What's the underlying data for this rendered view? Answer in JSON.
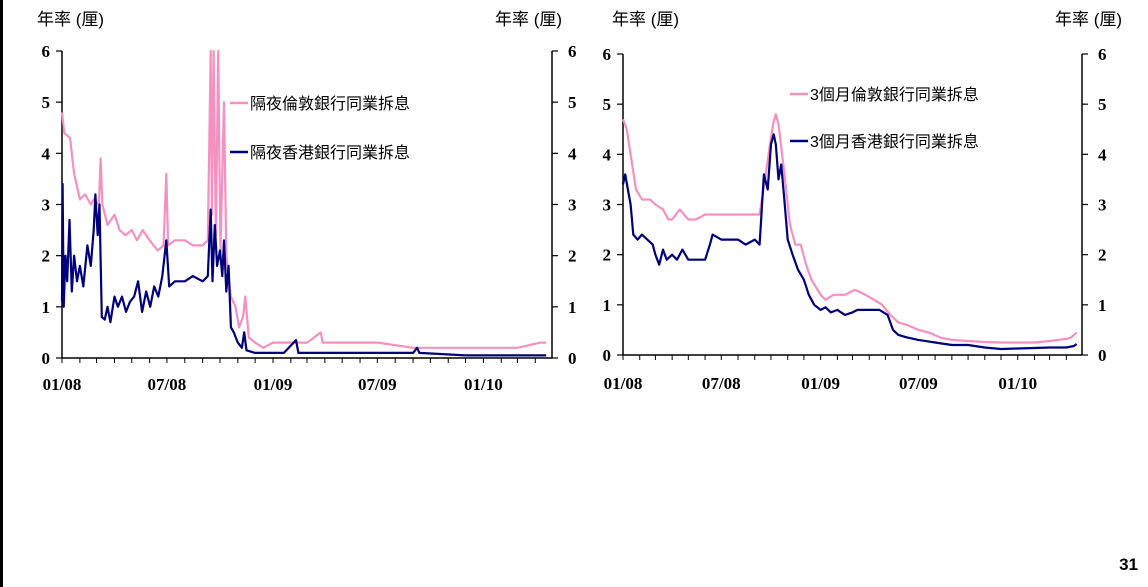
{
  "page_number": "31",
  "colors": {
    "pink": "#F590C0",
    "navy": "#00007A"
  },
  "chart_data": [
    {
      "type": "line",
      "left_unit": "年率 (厘)",
      "right_unit": "年率 (厘)",
      "x_tick_labels": [
        "01/08",
        "07/08",
        "01/09",
        "07/09",
        "01/10"
      ],
      "xlim": [
        "2008-01-01",
        "2010-04-30"
      ],
      "ylim": [
        0,
        6
      ],
      "y_ticks": [
        0,
        1,
        2,
        3,
        4,
        5,
        6
      ],
      "grid": false,
      "legend_position": "top-right",
      "series": [
        {
          "name": "隔夜倫敦銀行同業拆息",
          "color": "#F590C0",
          "points": [
            [
              "2008-01-01",
              4.8
            ],
            [
              "2008-01-05",
              4.4
            ],
            [
              "2008-01-15",
              4.3
            ],
            [
              "2008-01-22",
              3.6
            ],
            [
              "2008-02-01",
              3.1
            ],
            [
              "2008-02-10",
              3.2
            ],
            [
              "2008-02-20",
              3.0
            ],
            [
              "2008-02-25",
              3.1
            ],
            [
              "2008-03-05",
              3.0
            ],
            [
              "2008-03-08",
              3.9
            ],
            [
              "2008-03-11",
              3.0
            ],
            [
              "2008-03-20",
              2.6
            ],
            [
              "2008-04-01",
              2.8
            ],
            [
              "2008-04-10",
              2.5
            ],
            [
              "2008-04-20",
              2.4
            ],
            [
              "2008-05-01",
              2.5
            ],
            [
              "2008-05-10",
              2.3
            ],
            [
              "2008-05-20",
              2.5
            ],
            [
              "2008-06-01",
              2.3
            ],
            [
              "2008-06-15",
              2.1
            ],
            [
              "2008-06-25",
              2.2
            ],
            [
              "2008-06-30",
              3.6
            ],
            [
              "2008-07-03",
              2.2
            ],
            [
              "2008-07-15",
              2.3
            ],
            [
              "2008-08-01",
              2.3
            ],
            [
              "2008-08-15",
              2.2
            ],
            [
              "2008-09-01",
              2.2
            ],
            [
              "2008-09-10",
              2.3
            ],
            [
              "2008-09-15",
              6.0
            ],
            [
              "2008-09-17",
              2.8
            ],
            [
              "2008-09-20",
              6.0
            ],
            [
              "2008-09-24",
              2.4
            ],
            [
              "2008-09-28",
              6.0
            ],
            [
              "2008-10-02",
              2.1
            ],
            [
              "2008-10-08",
              5.0
            ],
            [
              "2008-10-12",
              2.0
            ],
            [
              "2008-10-20",
              1.2
            ],
            [
              "2008-10-28",
              1.0
            ],
            [
              "2008-11-03",
              0.6
            ],
            [
              "2008-11-10",
              0.8
            ],
            [
              "2008-11-14",
              1.2
            ],
            [
              "2008-11-20",
              0.4
            ],
            [
              "2008-12-01",
              0.3
            ],
            [
              "2008-12-15",
              0.2
            ],
            [
              "2009-01-01",
              0.3
            ],
            [
              "2009-02-01",
              0.3
            ],
            [
              "2009-03-01",
              0.3
            ],
            [
              "2009-03-25",
              0.5
            ],
            [
              "2009-03-28",
              0.3
            ],
            [
              "2009-05-01",
              0.3
            ],
            [
              "2009-07-01",
              0.3
            ],
            [
              "2009-09-01",
              0.2
            ],
            [
              "2009-12-01",
              0.2
            ],
            [
              "2010-03-01",
              0.2
            ],
            [
              "2010-04-10",
              0.3
            ],
            [
              "2010-04-20",
              0.3
            ]
          ]
        },
        {
          "name": "隔夜香港銀行同業拆息",
          "color": "#00007A",
          "points": [
            [
              "2008-01-01",
              1.1
            ],
            [
              "2008-01-02",
              3.4
            ],
            [
              "2008-01-04",
              1.0
            ],
            [
              "2008-01-07",
              2.0
            ],
            [
              "2008-01-10",
              1.5
            ],
            [
              "2008-01-14",
              2.7
            ],
            [
              "2008-01-18",
              1.3
            ],
            [
              "2008-01-22",
              2.0
            ],
            [
              "2008-01-27",
              1.5
            ],
            [
              "2008-02-01",
              1.8
            ],
            [
              "2008-02-07",
              1.4
            ],
            [
              "2008-02-14",
              2.2
            ],
            [
              "2008-02-20",
              1.8
            ],
            [
              "2008-02-25",
              2.5
            ],
            [
              "2008-02-28",
              3.2
            ],
            [
              "2008-03-03",
              2.4
            ],
            [
              "2008-03-06",
              3.0
            ],
            [
              "2008-03-10",
              0.8
            ],
            [
              "2008-03-15",
              0.75
            ],
            [
              "2008-03-20",
              1.0
            ],
            [
              "2008-03-25",
              0.7
            ],
            [
              "2008-04-01",
              1.2
            ],
            [
              "2008-04-07",
              1.0
            ],
            [
              "2008-04-14",
              1.2
            ],
            [
              "2008-04-21",
              0.9
            ],
            [
              "2008-04-28",
              1.1
            ],
            [
              "2008-05-05",
              1.2
            ],
            [
              "2008-05-12",
              1.5
            ],
            [
              "2008-05-19",
              0.9
            ],
            [
              "2008-05-26",
              1.3
            ],
            [
              "2008-06-02",
              1.0
            ],
            [
              "2008-06-09",
              1.4
            ],
            [
              "2008-06-16",
              1.2
            ],
            [
              "2008-06-23",
              1.6
            ],
            [
              "2008-06-30",
              2.3
            ],
            [
              "2008-07-05",
              1.4
            ],
            [
              "2008-07-15",
              1.5
            ],
            [
              "2008-08-01",
              1.5
            ],
            [
              "2008-08-15",
              1.6
            ],
            [
              "2008-09-01",
              1.5
            ],
            [
              "2008-09-10",
              1.6
            ],
            [
              "2008-09-15",
              2.9
            ],
            [
              "2008-09-18",
              1.5
            ],
            [
              "2008-09-22",
              2.6
            ],
            [
              "2008-09-26",
              1.8
            ],
            [
              "2008-10-01",
              2.1
            ],
            [
              "2008-10-05",
              1.6
            ],
            [
              "2008-10-08",
              2.3
            ],
            [
              "2008-10-12",
              1.3
            ],
            [
              "2008-10-16",
              1.8
            ],
            [
              "2008-10-20",
              0.6
            ],
            [
              "2008-10-25",
              0.5
            ],
            [
              "2008-11-01",
              0.3
            ],
            [
              "2008-11-08",
              0.2
            ],
            [
              "2008-11-12",
              0.5
            ],
            [
              "2008-11-16",
              0.15
            ],
            [
              "2008-12-01",
              0.1
            ],
            [
              "2009-01-01",
              0.1
            ],
            [
              "2009-01-20",
              0.1
            ],
            [
              "2009-02-10",
              0.35
            ],
            [
              "2009-02-14",
              0.1
            ],
            [
              "2009-04-01",
              0.1
            ],
            [
              "2009-06-01",
              0.1
            ],
            [
              "2009-09-01",
              0.1
            ],
            [
              "2009-09-08",
              0.2
            ],
            [
              "2009-09-12",
              0.1
            ],
            [
              "2009-12-01",
              0.05
            ],
            [
              "2010-04-20",
              0.05
            ]
          ]
        }
      ]
    },
    {
      "type": "line",
      "left_unit": "年率 (厘)",
      "right_unit": "年率 (厘)",
      "x_tick_labels": [
        "01/08",
        "07/08",
        "01/09",
        "07/09",
        "01/10"
      ],
      "xlim": [
        "2008-01-01",
        "2010-04-30"
      ],
      "ylim": [
        0,
        6
      ],
      "y_ticks": [
        0,
        1,
        2,
        3,
        4,
        5,
        6
      ],
      "grid": false,
      "legend_position": "top-right",
      "series": [
        {
          "name": "3個月倫敦銀行同業拆息",
          "color": "#F590C0",
          "points": [
            [
              "2008-01-01",
              4.7
            ],
            [
              "2008-01-08",
              4.5
            ],
            [
              "2008-01-15",
              4.0
            ],
            [
              "2008-01-25",
              3.3
            ],
            [
              "2008-02-05",
              3.1
            ],
            [
              "2008-02-20",
              3.1
            ],
            [
              "2008-03-01",
              3.0
            ],
            [
              "2008-03-15",
              2.9
            ],
            [
              "2008-03-25",
              2.7
            ],
            [
              "2008-04-01",
              2.7
            ],
            [
              "2008-04-15",
              2.9
            ],
            [
              "2008-05-01",
              2.7
            ],
            [
              "2008-05-15",
              2.7
            ],
            [
              "2008-06-01",
              2.8
            ],
            [
              "2008-06-15",
              2.8
            ],
            [
              "2008-07-01",
              2.8
            ],
            [
              "2008-08-01",
              2.8
            ],
            [
              "2008-09-01",
              2.8
            ],
            [
              "2008-09-10",
              2.8
            ],
            [
              "2008-09-20",
              3.5
            ],
            [
              "2008-09-28",
              4.1
            ],
            [
              "2008-10-05",
              4.6
            ],
            [
              "2008-10-10",
              4.8
            ],
            [
              "2008-10-15",
              4.6
            ],
            [
              "2008-10-25",
              3.7
            ],
            [
              "2008-11-05",
              2.6
            ],
            [
              "2008-11-15",
              2.2
            ],
            [
              "2008-11-25",
              2.2
            ],
            [
              "2008-12-05",
              1.8
            ],
            [
              "2008-12-15",
              1.5
            ],
            [
              "2009-01-01",
              1.2
            ],
            [
              "2009-01-10",
              1.1
            ],
            [
              "2009-01-25",
              1.2
            ],
            [
              "2009-02-15",
              1.2
            ],
            [
              "2009-03-05",
              1.3
            ],
            [
              "2009-03-25",
              1.2
            ],
            [
              "2009-04-10",
              1.1
            ],
            [
              "2009-04-25",
              1.0
            ],
            [
              "2009-05-10",
              0.8
            ],
            [
              "2009-05-25",
              0.65
            ],
            [
              "2009-06-10",
              0.6
            ],
            [
              "2009-07-01",
              0.5
            ],
            [
              "2009-07-20",
              0.45
            ],
            [
              "2009-08-10",
              0.35
            ],
            [
              "2009-09-01",
              0.3
            ],
            [
              "2009-10-01",
              0.28
            ],
            [
              "2009-11-01",
              0.26
            ],
            [
              "2009-12-01",
              0.25
            ],
            [
              "2010-01-01",
              0.25
            ],
            [
              "2010-02-01",
              0.25
            ],
            [
              "2010-03-01",
              0.28
            ],
            [
              "2010-04-01",
              0.32
            ],
            [
              "2010-04-10",
              0.35
            ],
            [
              "2010-04-20",
              0.45
            ]
          ]
        },
        {
          "name": "3個月香港銀行同業拆息",
          "color": "#00007A",
          "points": [
            [
              "2008-01-01",
              3.4
            ],
            [
              "2008-01-05",
              3.6
            ],
            [
              "2008-01-10",
              3.3
            ],
            [
              "2008-01-15",
              3.0
            ],
            [
              "2008-01-20",
              2.4
            ],
            [
              "2008-01-28",
              2.3
            ],
            [
              "2008-02-05",
              2.4
            ],
            [
              "2008-02-15",
              2.3
            ],
            [
              "2008-02-25",
              2.2
            ],
            [
              "2008-03-01",
              2.0
            ],
            [
              "2008-03-08",
              1.8
            ],
            [
              "2008-03-15",
              2.1
            ],
            [
              "2008-03-22",
              1.9
            ],
            [
              "2008-04-01",
              2.0
            ],
            [
              "2008-04-10",
              1.9
            ],
            [
              "2008-04-20",
              2.1
            ],
            [
              "2008-05-01",
              1.9
            ],
            [
              "2008-05-15",
              1.9
            ],
            [
              "2008-06-01",
              1.9
            ],
            [
              "2008-06-10",
              2.2
            ],
            [
              "2008-06-15",
              2.4
            ],
            [
              "2008-07-01",
              2.3
            ],
            [
              "2008-07-15",
              2.3
            ],
            [
              "2008-08-01",
              2.3
            ],
            [
              "2008-08-15",
              2.2
            ],
            [
              "2008-09-01",
              2.3
            ],
            [
              "2008-09-10",
              2.2
            ],
            [
              "2008-09-18",
              3.6
            ],
            [
              "2008-09-25",
              3.3
            ],
            [
              "2008-10-01",
              4.2
            ],
            [
              "2008-10-06",
              4.4
            ],
            [
              "2008-10-10",
              4.2
            ],
            [
              "2008-10-15",
              3.5
            ],
            [
              "2008-10-20",
              3.8
            ],
            [
              "2008-10-25",
              3.2
            ],
            [
              "2008-11-01",
              2.3
            ],
            [
              "2008-11-10",
              2.0
            ],
            [
              "2008-11-20",
              1.7
            ],
            [
              "2008-12-01",
              1.5
            ],
            [
              "2008-12-10",
              1.2
            ],
            [
              "2008-12-20",
              1.0
            ],
            [
              "2009-01-01",
              0.9
            ],
            [
              "2009-01-10",
              0.95
            ],
            [
              "2009-01-20",
              0.85
            ],
            [
              "2009-02-01",
              0.9
            ],
            [
              "2009-02-15",
              0.8
            ],
            [
              "2009-03-01",
              0.85
            ],
            [
              "2009-03-10",
              0.9
            ],
            [
              "2009-04-01",
              0.9
            ],
            [
              "2009-04-20",
              0.9
            ],
            [
              "2009-05-05",
              0.8
            ],
            [
              "2009-05-15",
              0.5
            ],
            [
              "2009-05-25",
              0.4
            ],
            [
              "2009-06-10",
              0.35
            ],
            [
              "2009-07-01",
              0.3
            ],
            [
              "2009-08-01",
              0.25
            ],
            [
              "2009-09-01",
              0.2
            ],
            [
              "2009-10-01",
              0.2
            ],
            [
              "2009-11-01",
              0.15
            ],
            [
              "2009-12-01",
              0.12
            ],
            [
              "2010-01-01",
              0.13
            ],
            [
              "2010-02-01",
              0.14
            ],
            [
              "2010-03-01",
              0.15
            ],
            [
              "2010-04-01",
              0.15
            ],
            [
              "2010-04-15",
              0.18
            ],
            [
              "2010-04-20",
              0.22
            ]
          ]
        }
      ]
    }
  ]
}
